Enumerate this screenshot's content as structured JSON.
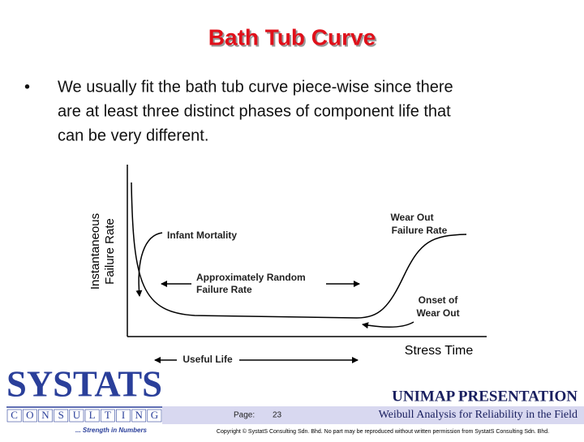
{
  "header": {
    "title": "Bath Tub Curve"
  },
  "bullet": {
    "lines": [
      "We usually fit the bath tub curve piece-wise since there",
      "are at least three distinct phases of component life that",
      "can be very different."
    ]
  },
  "diagram": {
    "y_axis_label": [
      "Instantaneous",
      "Failure Rate"
    ],
    "x_axis_label": "Stress Time",
    "labels": {
      "infant_mortality": "Infant Mortality",
      "random": [
        "Approximately Random",
        "Failure Rate"
      ],
      "wear_out": [
        "Wear Out",
        "Failure Rate"
      ],
      "onset": [
        "Onset of",
        "Wear Out"
      ],
      "useful_life": "Useful Life"
    }
  },
  "footer": {
    "logo": "SYSTATS",
    "consulting": [
      "C",
      "O",
      "N",
      "S",
      "U",
      "L",
      "T",
      "I",
      "N",
      "G"
    ],
    "tagline": "... Strength in Numbers",
    "presentation": "UNIMAP PRESENTATION",
    "page_label": "Page:",
    "page_number": 23,
    "course": "Weibull Analysis for Reliability in the Field",
    "copyright": "Copyright © SystatS Consulting Sdn. Bhd.  No part may be reproduced without written permission from SystatS Consulting Sdn. Bhd."
  }
}
